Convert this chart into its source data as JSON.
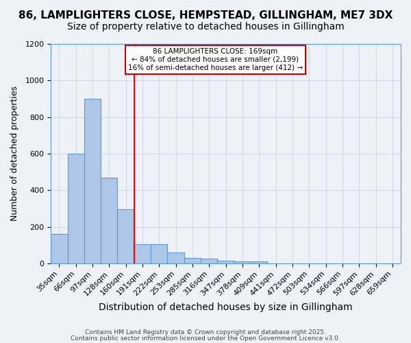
{
  "title1": "86, LAMPLIGHTERS CLOSE, HEMPSTEAD, GILLINGHAM, ME7 3DX",
  "title2": "Size of property relative to detached houses in Gillingham",
  "xlabel": "Distribution of detached houses by size in Gillingham",
  "ylabel": "Number of detached properties",
  "categories": [
    "35sqm",
    "66sqm",
    "97sqm",
    "128sqm",
    "160sqm",
    "191sqm",
    "222sqm",
    "253sqm",
    "285sqm",
    "316sqm",
    "347sqm",
    "378sqm",
    "409sqm",
    "441sqm",
    "472sqm",
    "503sqm",
    "534sqm",
    "566sqm",
    "597sqm",
    "628sqm",
    "659sqm"
  ],
  "values": [
    160,
    600,
    900,
    470,
    295,
    105,
    105,
    60,
    30,
    25,
    15,
    10,
    10,
    0,
    0,
    0,
    0,
    0,
    0,
    0,
    0
  ],
  "bar_color": "#aec6e8",
  "bar_edge_color": "#5b9bd5",
  "grid_color": "#d0d8e8",
  "bg_color": "#eef2f8",
  "red_line_x": 4.5,
  "annotation_text": "86 LAMPLIGHTERS CLOSE: 169sqm\n← 84% of detached houses are smaller (2,199)\n16% of semi-detached houses are larger (412) →",
  "annotation_box_color": "#ffffff",
  "annotation_box_edge": "#cc0000",
  "footnote1": "Contains HM Land Registry data © Crown copyright and database right 2025.",
  "footnote2": "Contains public sector information licensed under the Open Government Licence v3.0.",
  "ylim": [
    0,
    1200
  ],
  "title1_fontsize": 11,
  "title2_fontsize": 10,
  "xlabel_fontsize": 10,
  "ylabel_fontsize": 9,
  "tick_fontsize": 8
}
